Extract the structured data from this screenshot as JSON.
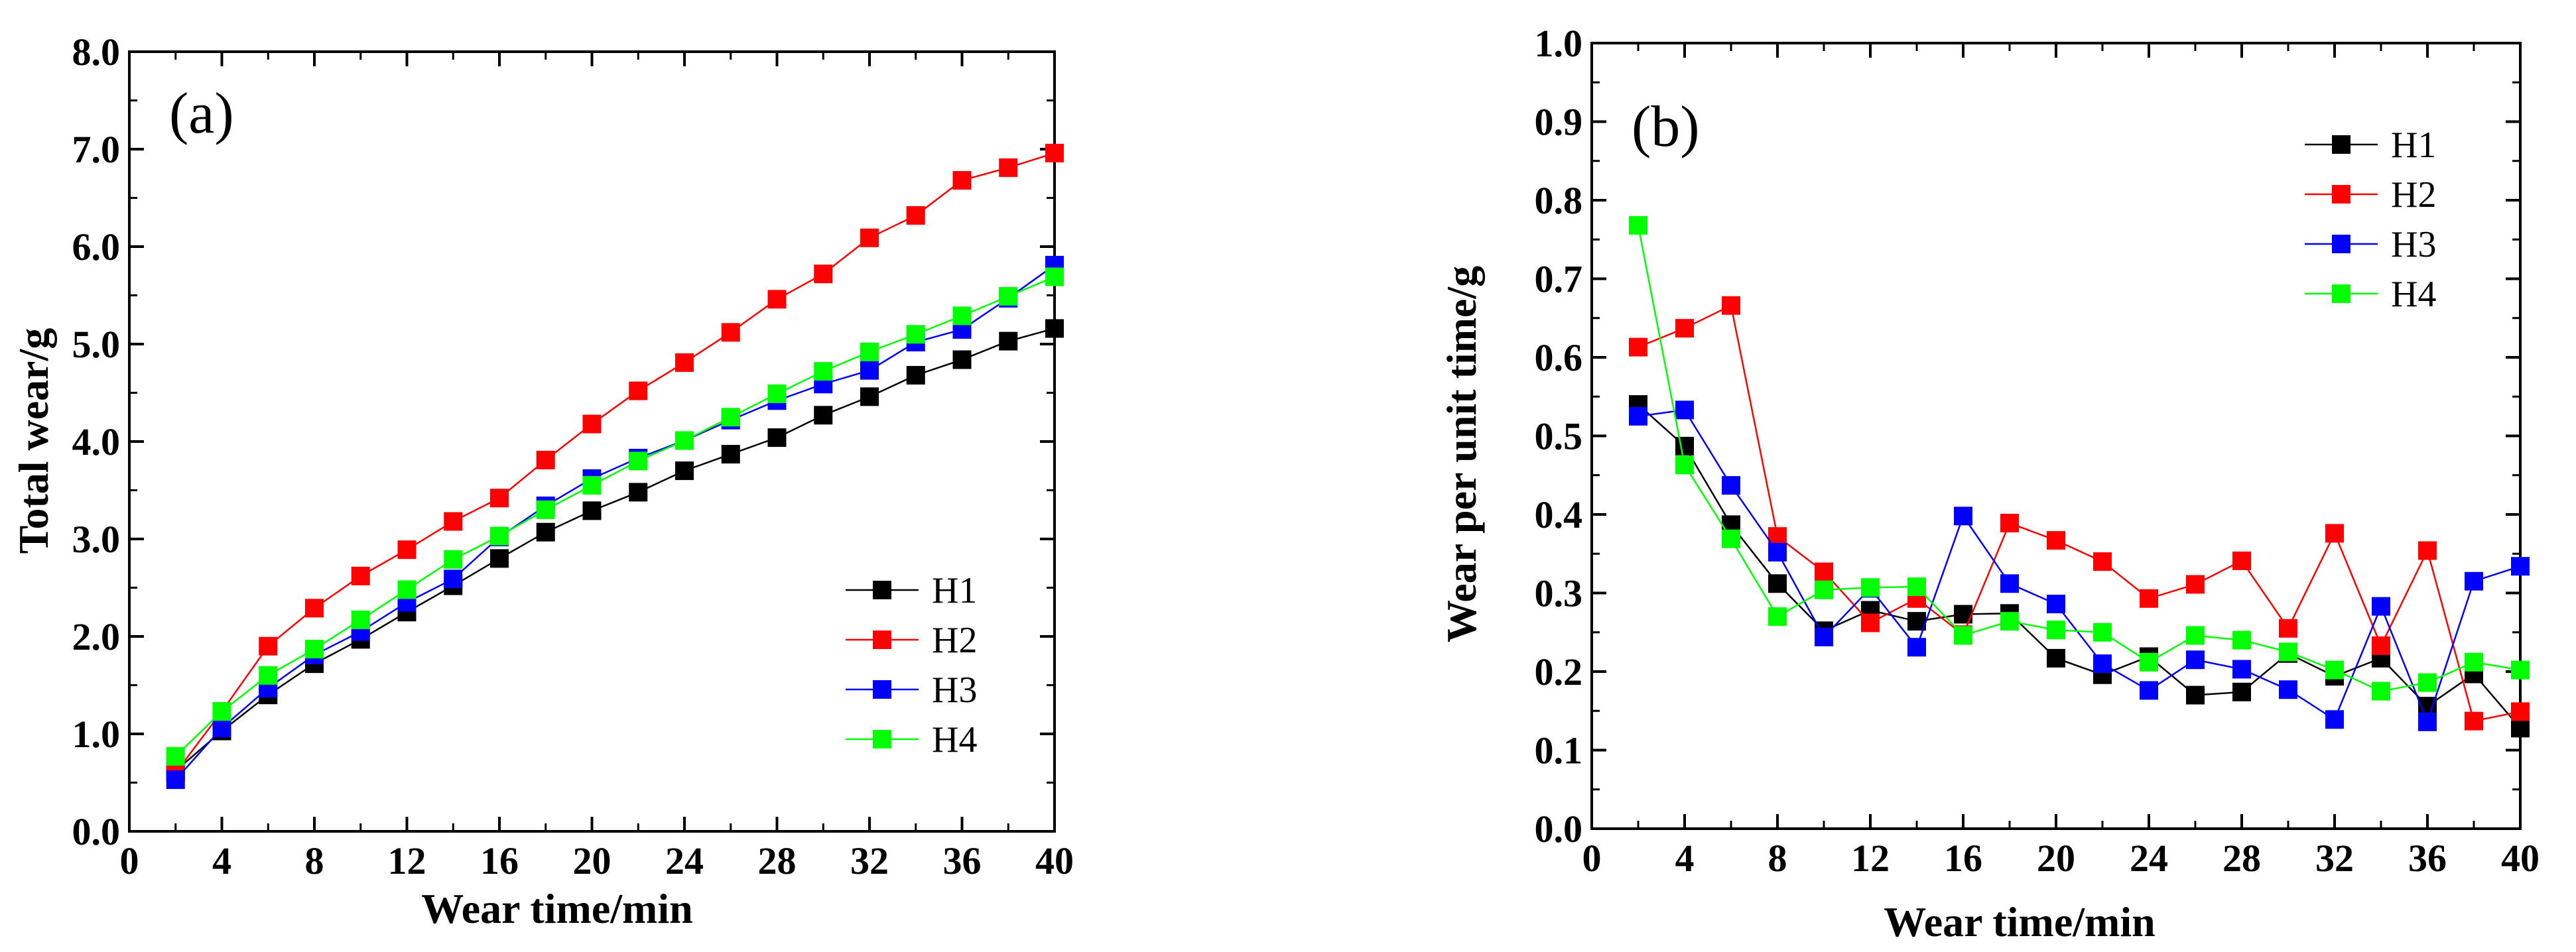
{
  "chart_data": [
    {
      "type": "line",
      "panel_label": "(a)",
      "xlabel": "Wear time/min",
      "ylabel": "Total wear/g",
      "xlim": [
        0,
        40
      ],
      "ylim": [
        0,
        8
      ],
      "xticks": [
        0,
        4,
        8,
        12,
        16,
        20,
        24,
        28,
        32,
        36,
        40
      ],
      "yticks": [
        0.0,
        1.0,
        2.0,
        3.0,
        4.0,
        5.0,
        6.0,
        7.0,
        8.0
      ],
      "ytick_labels": [
        "0.0",
        "1.0",
        "2.0",
        "3.0",
        "4.0",
        "5.0",
        "6.0",
        "7.0",
        "8.0"
      ],
      "legend_position": "bottom-right",
      "grid": false,
      "x": [
        2,
        4,
        6,
        8,
        10,
        12,
        14,
        16,
        18,
        20,
        22,
        24,
        26,
        28,
        30,
        32,
        34,
        36,
        38,
        40
      ],
      "series": [
        {
          "name": "H1",
          "color": "#000000",
          "values": [
            0.62,
            1.03,
            1.4,
            1.72,
            1.97,
            2.25,
            2.52,
            2.8,
            3.07,
            3.29,
            3.48,
            3.7,
            3.87,
            4.04,
            4.27,
            4.46,
            4.68,
            4.84,
            5.03,
            5.16
          ]
        },
        {
          "name": "H2",
          "color": "#ff0000",
          "values": [
            0.6,
            1.23,
            1.9,
            2.29,
            2.62,
            2.89,
            3.18,
            3.42,
            3.81,
            4.18,
            4.52,
            4.81,
            5.12,
            5.46,
            5.72,
            6.09,
            6.32,
            6.68,
            6.81,
            6.96
          ]
        },
        {
          "name": "H3",
          "color": "#0000ff",
          "values": [
            0.53,
            1.06,
            1.47,
            1.81,
            2.05,
            2.35,
            2.59,
            3.02,
            3.34,
            3.62,
            3.83,
            4.01,
            4.22,
            4.42,
            4.59,
            4.73,
            5.02,
            5.15,
            5.47,
            5.81
          ]
        },
        {
          "name": "H4",
          "color": "#00ff00",
          "values": [
            0.77,
            1.23,
            1.6,
            1.87,
            2.17,
            2.48,
            2.79,
            3.03,
            3.3,
            3.55,
            3.8,
            4.01,
            4.25,
            4.49,
            4.72,
            4.92,
            5.1,
            5.29,
            5.49,
            5.69
          ]
        }
      ]
    },
    {
      "type": "line",
      "panel_label": "(b)",
      "xlabel": "Wear time/min",
      "ylabel": "Wear per unit time/g",
      "xlim": [
        0,
        40
      ],
      "ylim": [
        0,
        1.0
      ],
      "xticks": [
        0,
        4,
        8,
        12,
        16,
        20,
        24,
        28,
        32,
        36,
        40
      ],
      "yticks": [
        0.0,
        0.1,
        0.2,
        0.3,
        0.4,
        0.5,
        0.6,
        0.7,
        0.8,
        0.9,
        1.0
      ],
      "ytick_labels": [
        "0.0",
        "0.1",
        "0.2",
        "0.3",
        "0.4",
        "0.5",
        "0.6",
        "0.7",
        "0.8",
        "0.9",
        "1.0"
      ],
      "legend_position": "top-right",
      "grid": false,
      "x": [
        2,
        4,
        6,
        8,
        10,
        12,
        14,
        16,
        18,
        20,
        22,
        24,
        26,
        28,
        30,
        32,
        34,
        36,
        38,
        40
      ],
      "series": [
        {
          "name": "H1",
          "color": "#000000",
          "values": [
            0.54,
            0.487,
            0.387,
            0.312,
            0.252,
            0.278,
            0.264,
            0.273,
            0.274,
            0.217,
            0.196,
            0.219,
            0.17,
            0.174,
            0.223,
            0.194,
            0.217,
            0.156,
            0.197,
            0.128
          ]
        },
        {
          "name": "H2",
          "color": "#ff0000",
          "values": [
            0.613,
            0.637,
            0.666,
            0.372,
            0.327,
            0.262,
            0.293,
            0.247,
            0.389,
            0.367,
            0.34,
            0.293,
            0.311,
            0.341,
            0.255,
            0.376,
            0.233,
            0.354,
            0.137,
            0.149
          ]
        },
        {
          "name": "H3",
          "color": "#0000ff",
          "values": [
            0.525,
            0.533,
            0.437,
            0.352,
            0.244,
            0.306,
            0.231,
            0.398,
            0.312,
            0.286,
            0.21,
            0.176,
            0.215,
            0.203,
            0.177,
            0.139,
            0.283,
            0.136,
            0.315,
            0.334
          ]
        },
        {
          "name": "H4",
          "color": "#00ff00",
          "values": [
            0.768,
            0.463,
            0.369,
            0.27,
            0.304,
            0.307,
            0.308,
            0.246,
            0.264,
            0.253,
            0.25,
            0.212,
            0.246,
            0.24,
            0.225,
            0.202,
            0.175,
            0.186,
            0.212,
            0.202
          ]
        }
      ]
    }
  ]
}
